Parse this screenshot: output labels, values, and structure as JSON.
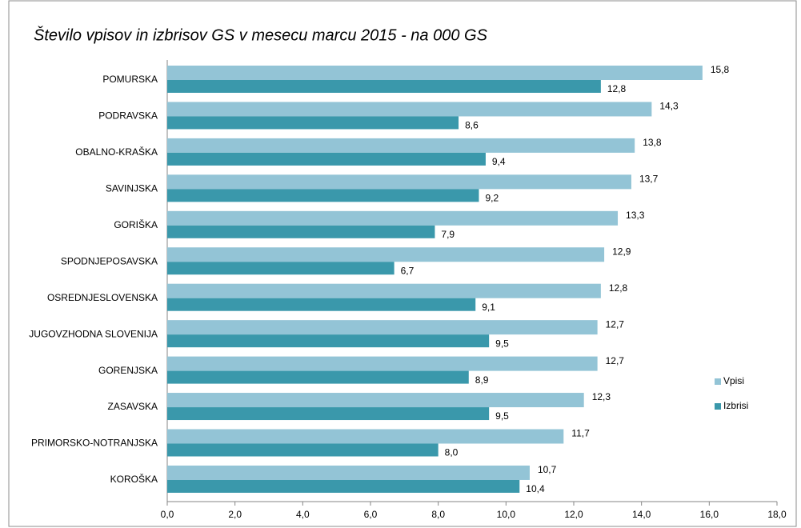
{
  "chart_data": {
    "type": "hbar",
    "title": "Število vpisov in izbrisov GS  v mesecu marcu 2015 - na 000 GS",
    "categories": [
      "POMURSKA",
      "PODRAVSKA",
      "OBALNO-KRAŠKA",
      "SAVINJSKA",
      "GORIŠKA",
      "SPODNJEPOSAVSKA",
      "OSREDNJESLOVENSKA",
      "JUGOVZHODNA  SLOVENIJA",
      "GORENJSKA",
      "ZASAVSKA",
      "PRIMORSKO-NOTRANJSKA",
      "KOROŠKA"
    ],
    "series": [
      {
        "name": "Vpisi",
        "color": "#93c4d6",
        "values": [
          15.8,
          14.3,
          13.8,
          13.7,
          13.3,
          12.9,
          12.8,
          12.7,
          12.7,
          12.3,
          11.7,
          10.7
        ],
        "value_labels": [
          "15,8",
          "14,3",
          "13,8",
          "13,7",
          "13,3",
          "12,9",
          "12,8",
          "12,7",
          "12,7",
          "12,3",
          "11,7",
          "10,7"
        ]
      },
      {
        "name": "Izbrisi",
        "color": "#3a98ab",
        "values": [
          12.8,
          8.6,
          9.4,
          9.2,
          7.9,
          6.7,
          9.1,
          9.5,
          8.9,
          9.5,
          8.0,
          10.4
        ],
        "value_labels": [
          "12,8",
          "8,6",
          "9,4",
          "9,2",
          "7,9",
          "6,7",
          "9,1",
          "9,5",
          "8,9",
          "9,5",
          "8,0",
          "10,4"
        ]
      }
    ],
    "xlim": [
      0,
      18
    ],
    "xticks": [
      {
        "value": 0,
        "label": "0,0"
      },
      {
        "value": 2,
        "label": "2,0"
      },
      {
        "value": 4,
        "label": "4,0"
      },
      {
        "value": 6,
        "label": "6,0"
      },
      {
        "value": 8,
        "label": "8,0"
      },
      {
        "value": 10,
        "label": "10,0"
      },
      {
        "value": 12,
        "label": "12,0"
      },
      {
        "value": 14,
        "label": "14,0"
      },
      {
        "value": 16,
        "label": "16,0"
      },
      {
        "value": 18,
        "label": "18,0"
      }
    ],
    "legend": "right",
    "grid": false
  }
}
